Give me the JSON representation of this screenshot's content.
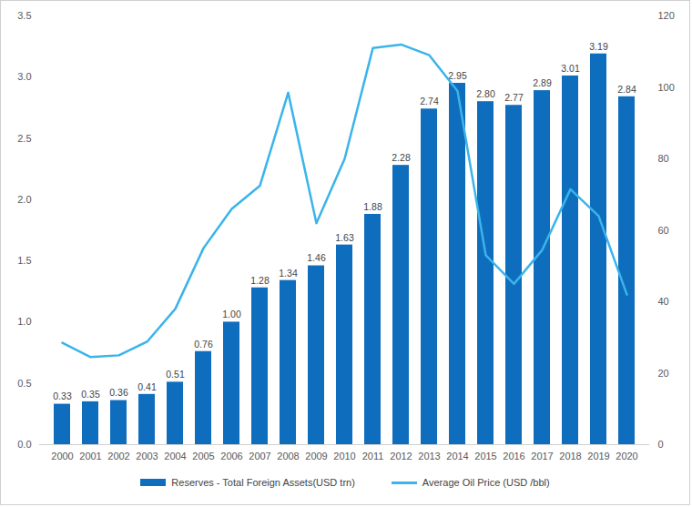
{
  "chart_data": {
    "type": "bar",
    "categories": [
      "2000",
      "2001",
      "2002",
      "2003",
      "2004",
      "2005",
      "2006",
      "2007",
      "2008",
      "2009",
      "2010",
      "2011",
      "2012",
      "2013",
      "2014",
      "2015",
      "2016",
      "2017",
      "2018",
      "2019",
      "2020"
    ],
    "series": [
      {
        "name": "Reserves - Total Foreign Assets(USD trn)",
        "type": "bar",
        "color": "#0f6dbd",
        "values": [
          0.33,
          0.35,
          0.36,
          0.41,
          0.51,
          0.76,
          1.0,
          1.28,
          1.34,
          1.46,
          1.63,
          1.88,
          2.28,
          2.74,
          2.95,
          2.8,
          2.77,
          2.89,
          3.01,
          3.19,
          2.84
        ],
        "value_labels": [
          "0.33",
          "0.35",
          "0.36",
          "0.41",
          "0.51",
          "0.76",
          "1.00",
          "1.28",
          "1.34",
          "1.46",
          "1.63",
          "1.88",
          "2.28",
          "2.74",
          "2.95",
          "2.80",
          "2.77",
          "2.89",
          "3.01",
          "3.19",
          "2.84"
        ]
      },
      {
        "name": "Average Oil Price (USD /bbl)",
        "type": "line",
        "axis": "y2",
        "color": "#3ab4ea",
        "values": [
          28.5,
          24.5,
          25,
          28.8,
          38,
          55,
          66,
          72.5,
          98.5,
          62,
          80,
          111,
          112,
          109,
          99,
          53,
          45,
          54.5,
          71.5,
          64,
          42
        ]
      }
    ],
    "ylim": [
      0,
      3.5
    ],
    "yticks": [
      {
        "value": 0,
        "label": "0.0"
      },
      0.5,
      {
        "value": 1,
        "label": "1.0"
      },
      1.5,
      {
        "value": 2,
        "label": "2.0"
      },
      2.5,
      {
        "value": 3,
        "label": "3.0"
      },
      3.5
    ],
    "y2lim": [
      0,
      120
    ],
    "y2ticks": [
      0,
      20,
      40,
      60,
      80,
      100,
      120
    ],
    "data_labels": true,
    "grid": false,
    "legend": "bottom"
  }
}
